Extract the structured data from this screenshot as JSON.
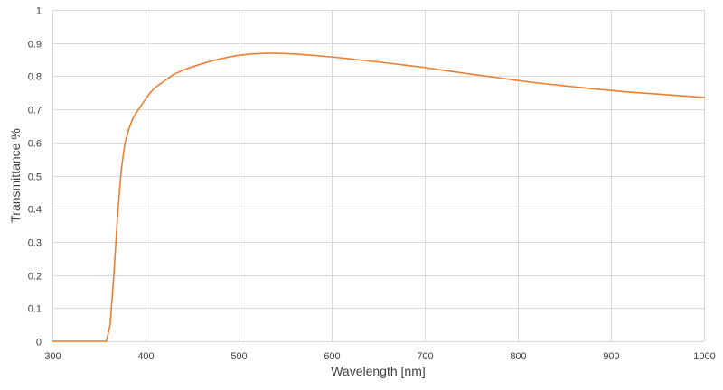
{
  "chart_data": {
    "type": "line",
    "title": "",
    "xlabel": "Wavelength [nm]",
    "ylabel": "Transmittance %",
    "xlim": [
      300,
      1000
    ],
    "ylim": [
      0,
      1
    ],
    "x_ticks": [
      "300",
      "400",
      "500",
      "600",
      "700",
      "800",
      "900",
      "1000"
    ],
    "y_ticks": [
      "0",
      "0.1",
      "0.2",
      "0.3",
      "0.4",
      "0.5",
      "0.6",
      "0.7",
      "0.8",
      "0.9",
      "1"
    ],
    "grid": true,
    "legend": "none",
    "series": [
      {
        "color": "#ED7D31",
        "x": [
          300,
          320,
          340,
          342,
          350,
          358,
          362,
          366,
          370,
          374,
          378,
          382,
          386,
          390,
          395,
          400,
          405,
          410,
          420,
          430,
          440,
          450,
          460,
          470,
          480,
          490,
          500,
          510,
          520,
          530,
          540,
          550,
          560,
          580,
          600,
          620,
          650,
          680,
          700,
          720,
          750,
          780,
          800,
          820,
          850,
          880,
          900,
          920,
          950,
          980,
          1000
        ],
        "y": [
          0,
          0,
          0,
          0,
          0,
          0,
          0.05,
          0.2,
          0.38,
          0.52,
          0.6,
          0.64,
          0.67,
          0.69,
          0.71,
          0.73,
          0.75,
          0.765,
          0.785,
          0.805,
          0.818,
          0.828,
          0.837,
          0.845,
          0.852,
          0.858,
          0.863,
          0.866,
          0.868,
          0.869,
          0.869,
          0.868,
          0.867,
          0.863,
          0.858,
          0.852,
          0.843,
          0.833,
          0.826,
          0.818,
          0.806,
          0.795,
          0.787,
          0.78,
          0.771,
          0.762,
          0.757,
          0.752,
          0.746,
          0.74,
          0.736
        ]
      }
    ]
  }
}
